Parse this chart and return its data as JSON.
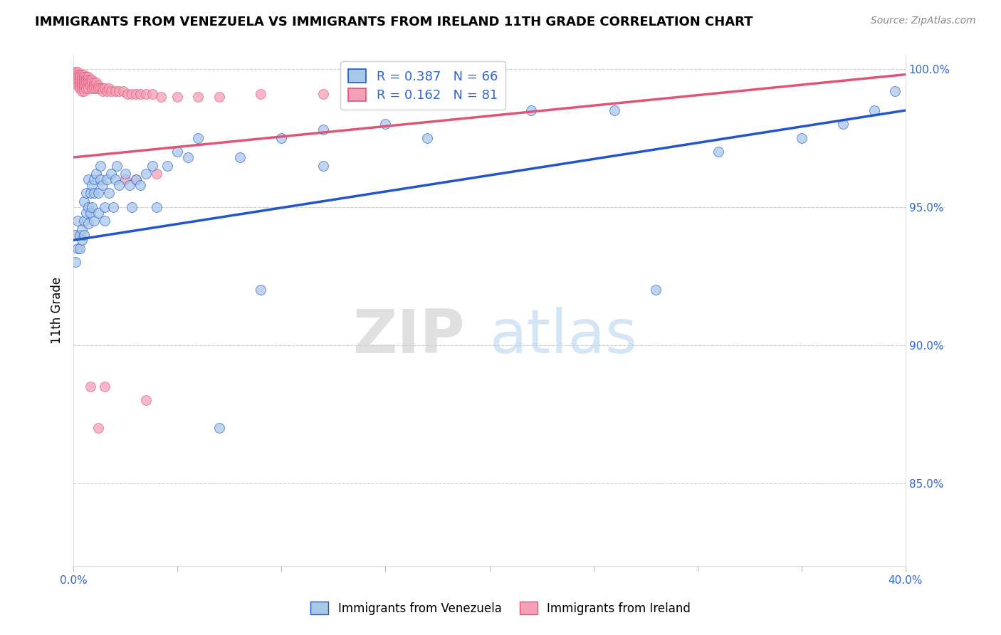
{
  "title": "IMMIGRANTS FROM VENEZUELA VS IMMIGRANTS FROM IRELAND 11TH GRADE CORRELATION CHART",
  "source": "Source: ZipAtlas.com",
  "ylabel": "11th Grade",
  "legend_label1": "Immigrants from Venezuela",
  "legend_label2": "Immigrants from Ireland",
  "R1": "0.387",
  "N1": "66",
  "R2": "0.162",
  "N2": "81",
  "xmin": 0.0,
  "xmax": 0.4,
  "ymin": 0.82,
  "ymax": 1.005,
  "color_venezuela": "#a8c8e8",
  "color_ireland": "#f4a0b8",
  "color_line_venezuela": "#2255cc",
  "color_line_ireland": "#e05575",
  "watermark_zip": "ZIP",
  "watermark_atlas": "atlas",
  "venezuela_x": [
    0.001,
    0.001,
    0.002,
    0.002,
    0.003,
    0.003,
    0.004,
    0.004,
    0.005,
    0.005,
    0.005,
    0.006,
    0.006,
    0.007,
    0.007,
    0.007,
    0.008,
    0.008,
    0.009,
    0.009,
    0.01,
    0.01,
    0.01,
    0.011,
    0.012,
    0.012,
    0.013,
    0.013,
    0.014,
    0.015,
    0.015,
    0.016,
    0.017,
    0.018,
    0.019,
    0.02,
    0.021,
    0.022,
    0.025,
    0.027,
    0.028,
    0.03,
    0.032,
    0.035,
    0.038,
    0.04,
    0.045,
    0.05,
    0.055,
    0.06,
    0.07,
    0.08,
    0.09,
    0.1,
    0.12,
    0.15,
    0.17,
    0.22,
    0.26,
    0.31,
    0.35,
    0.37,
    0.385,
    0.395,
    0.12,
    0.28
  ],
  "venezuela_y": [
    0.94,
    0.93,
    0.945,
    0.935,
    0.94,
    0.935,
    0.942,
    0.938,
    0.945,
    0.952,
    0.94,
    0.948,
    0.955,
    0.944,
    0.95,
    0.96,
    0.948,
    0.955,
    0.958,
    0.95,
    0.945,
    0.955,
    0.96,
    0.962,
    0.955,
    0.948,
    0.96,
    0.965,
    0.958,
    0.95,
    0.945,
    0.96,
    0.955,
    0.962,
    0.95,
    0.96,
    0.965,
    0.958,
    0.962,
    0.958,
    0.95,
    0.96,
    0.958,
    0.962,
    0.965,
    0.95,
    0.965,
    0.97,
    0.968,
    0.975,
    0.87,
    0.968,
    0.92,
    0.975,
    0.978,
    0.98,
    0.975,
    0.985,
    0.985,
    0.97,
    0.975,
    0.98,
    0.985,
    0.992,
    0.965,
    0.92
  ],
  "ireland_x": [
    0.001,
    0.001,
    0.001,
    0.001,
    0.001,
    0.002,
    0.002,
    0.002,
    0.002,
    0.002,
    0.002,
    0.003,
    0.003,
    0.003,
    0.003,
    0.003,
    0.003,
    0.004,
    0.004,
    0.004,
    0.004,
    0.004,
    0.004,
    0.004,
    0.005,
    0.005,
    0.005,
    0.005,
    0.005,
    0.005,
    0.005,
    0.006,
    0.006,
    0.006,
    0.006,
    0.007,
    0.007,
    0.007,
    0.007,
    0.008,
    0.008,
    0.008,
    0.009,
    0.009,
    0.009,
    0.01,
    0.01,
    0.01,
    0.011,
    0.011,
    0.012,
    0.012,
    0.013,
    0.014,
    0.014,
    0.015,
    0.016,
    0.017,
    0.018,
    0.02,
    0.022,
    0.024,
    0.026,
    0.028,
    0.03,
    0.032,
    0.035,
    0.038,
    0.042,
    0.05,
    0.06,
    0.07,
    0.09,
    0.12,
    0.03,
    0.04,
    0.012,
    0.008,
    0.025,
    0.015,
    0.035
  ],
  "ireland_y": [
    0.999,
    0.998,
    0.997,
    0.996,
    0.995,
    0.999,
    0.998,
    0.997,
    0.996,
    0.995,
    0.994,
    0.998,
    0.997,
    0.996,
    0.995,
    0.994,
    0.993,
    0.998,
    0.997,
    0.996,
    0.995,
    0.994,
    0.993,
    0.992,
    0.998,
    0.997,
    0.996,
    0.995,
    0.994,
    0.993,
    0.992,
    0.997,
    0.996,
    0.995,
    0.993,
    0.997,
    0.996,
    0.995,
    0.993,
    0.996,
    0.995,
    0.994,
    0.996,
    0.995,
    0.993,
    0.995,
    0.994,
    0.993,
    0.995,
    0.993,
    0.994,
    0.993,
    0.993,
    0.993,
    0.992,
    0.993,
    0.992,
    0.993,
    0.992,
    0.992,
    0.992,
    0.992,
    0.991,
    0.991,
    0.991,
    0.991,
    0.991,
    0.991,
    0.99,
    0.99,
    0.99,
    0.99,
    0.991,
    0.991,
    0.96,
    0.962,
    0.87,
    0.885,
    0.96,
    0.885,
    0.88
  ],
  "blue_line_x": [
    0.0,
    0.4
  ],
  "blue_line_y": [
    0.938,
    0.985
  ],
  "pink_line_x": [
    0.0,
    0.4
  ],
  "pink_line_y": [
    0.968,
    0.998
  ]
}
